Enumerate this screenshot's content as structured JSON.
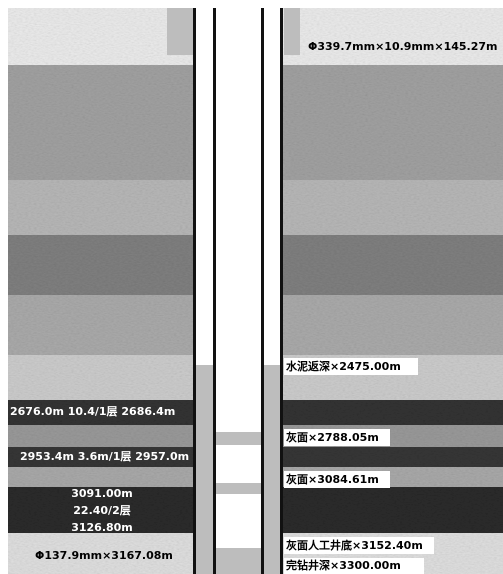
{
  "annotations": [
    "Φ339.7mm×10.9mm×145.27m",
    "水泥返深×2475.00m",
    "2676.0m  10.4/1层 2686.4m",
    "灰面×2788.05m",
    "2953.4m  3.6m/1层 2957.0m",
    "灰面×3084.61m",
    "3091.00m",
    "22.40/2层",
    "3126.80m",
    "Φ137.9mm×3167.08m",
    "灰面人工井底×3152.40m",
    "完钻井深×3300.00m"
  ]
}
